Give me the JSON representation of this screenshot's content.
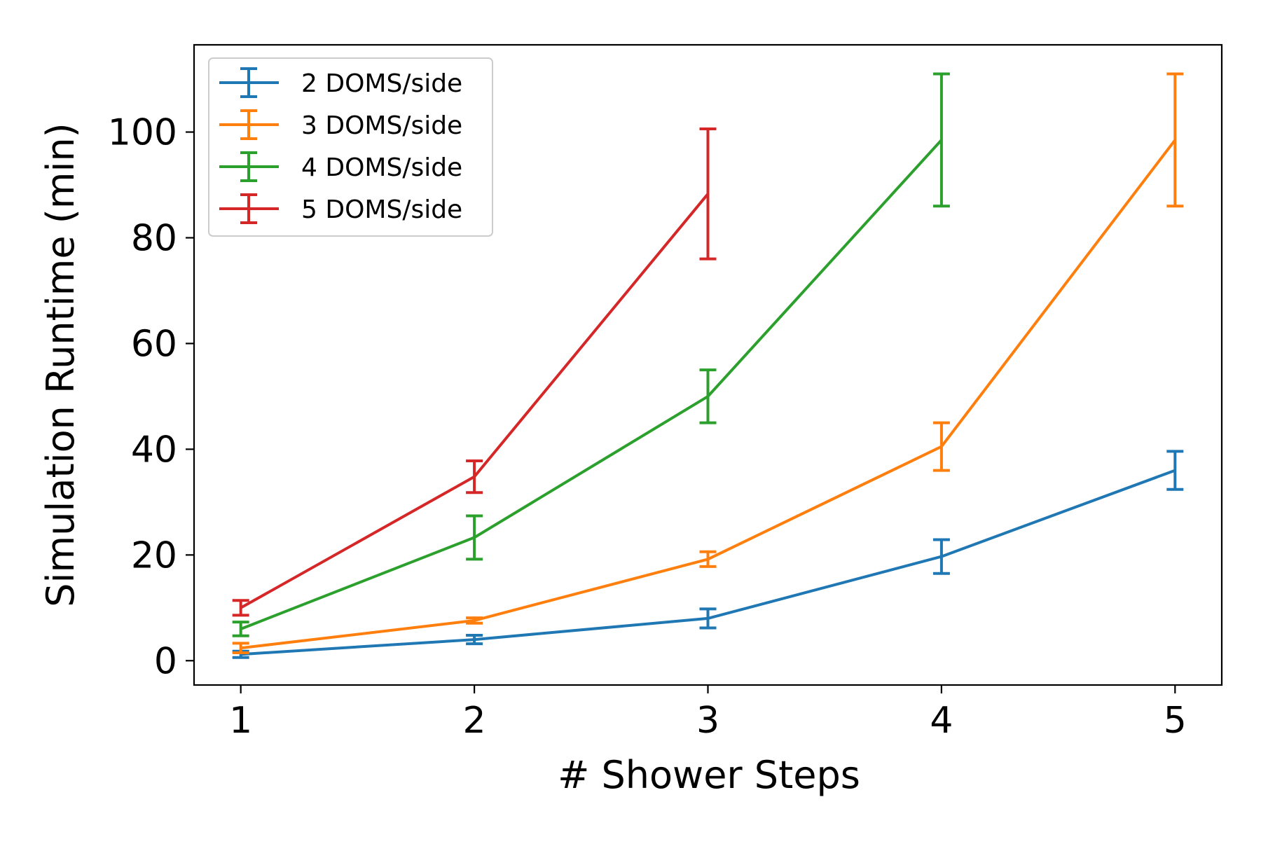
{
  "chart_data": {
    "type": "line",
    "title": "",
    "xlabel": "# Shower Steps",
    "ylabel": "Simulation Runtime (min)",
    "xlim": [
      0.8,
      5.2
    ],
    "ylim": [
      -4.6,
      116.5
    ],
    "xticks": [
      1,
      2,
      3,
      4,
      5
    ],
    "xtick_labels": [
      "1",
      "2",
      "3",
      "4",
      "5"
    ],
    "yticks": [
      0,
      20,
      40,
      60,
      80,
      100
    ],
    "ytick_labels": [
      "0",
      "20",
      "40",
      "60",
      "80",
      "100"
    ],
    "grid": false,
    "legend_position": "top-left",
    "error_bars": true,
    "series": [
      {
        "name": "2 DOMS/side",
        "color": "#1f77b4",
        "x": [
          1,
          2,
          3,
          4,
          5
        ],
        "y": [
          1.2,
          4.0,
          8.0,
          19.7,
          36.0
        ],
        "err": [
          0.6,
          0.8,
          1.8,
          3.2,
          3.6
        ]
      },
      {
        "name": "3 DOMS/side",
        "color": "#ff7f0e",
        "x": [
          1,
          2,
          3,
          4,
          5
        ],
        "y": [
          2.4,
          7.6,
          19.2,
          40.5,
          98.5
        ],
        "err": [
          0.9,
          0.5,
          1.4,
          4.5,
          12.5
        ]
      },
      {
        "name": "4 DOMS/side",
        "color": "#2ca02c",
        "x": [
          1,
          2,
          3,
          4
        ],
        "y": [
          6.0,
          23.3,
          50.0,
          98.5
        ],
        "err": [
          1.3,
          4.1,
          5.0,
          12.5
        ]
      },
      {
        "name": "5 DOMS/side",
        "color": "#d62728",
        "x": [
          1,
          2,
          3
        ],
        "y": [
          10.0,
          34.8,
          88.3
        ],
        "err": [
          1.4,
          3.0,
          12.3
        ]
      }
    ]
  }
}
